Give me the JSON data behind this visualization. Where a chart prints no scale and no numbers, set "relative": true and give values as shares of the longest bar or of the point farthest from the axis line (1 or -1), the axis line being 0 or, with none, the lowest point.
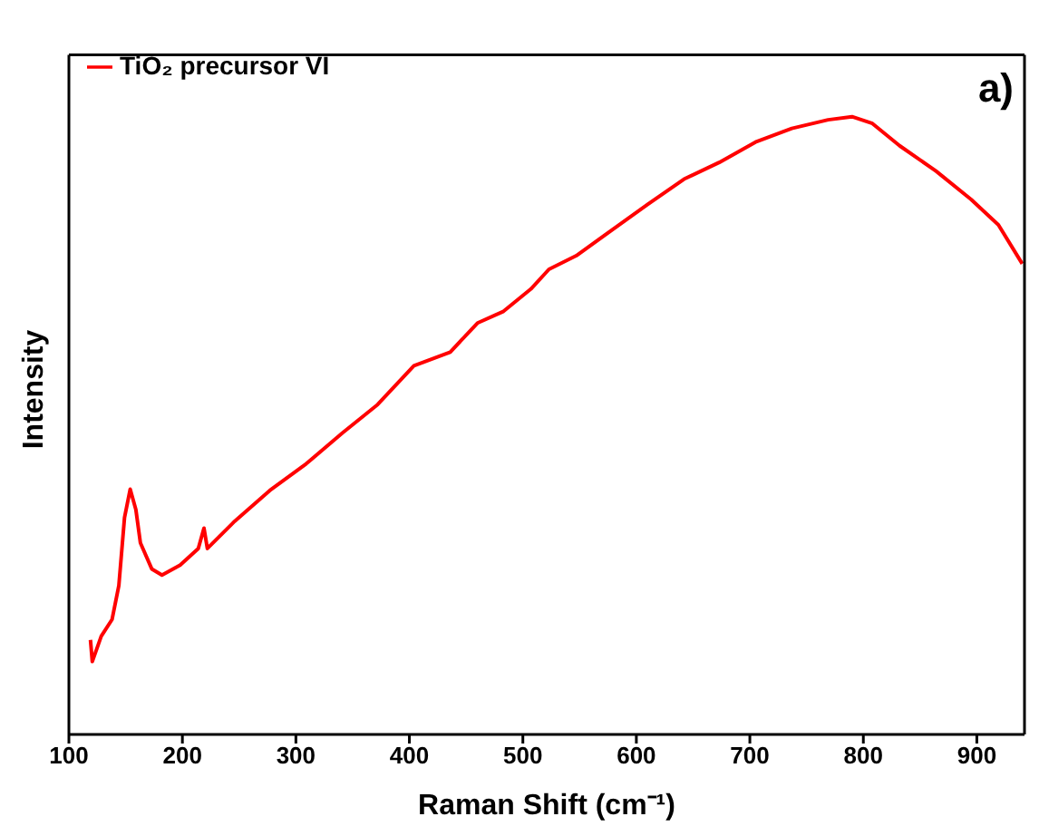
{
  "chart_data": {
    "type": "line",
    "xlabel": "Raman Shift (cm⁻¹)",
    "ylabel": "Intensity",
    "relative": true,
    "xlim": [
      100,
      942
    ],
    "xticks": [
      100,
      200,
      300,
      400,
      500,
      600,
      700,
      800,
      900
    ],
    "legend": "top left",
    "annotations": [
      "a)"
    ],
    "series": [
      {
        "name": "TiO₂ precursor VI",
        "color": "#ff0000",
        "x": [
          119,
          120.6,
          128.5,
          138,
          144,
          149,
          154,
          159,
          163,
          173,
          182,
          198,
          214,
          219,
          222,
          246,
          277,
          309,
          341,
          372,
          404,
          436,
          460,
          483,
          507,
          523,
          547,
          578,
          610,
          642,
          673,
          705,
          737,
          769,
          790,
          808,
          832,
          864,
          895,
          919,
          940
        ],
        "values": [
          0.153,
          0.118,
          0.159,
          0.186,
          0.241,
          0.351,
          0.397,
          0.364,
          0.31,
          0.268,
          0.258,
          0.274,
          0.301,
          0.334,
          0.301,
          0.345,
          0.395,
          0.438,
          0.488,
          0.534,
          0.597,
          0.619,
          0.666,
          0.685,
          0.721,
          0.753,
          0.775,
          0.816,
          0.858,
          0.899,
          0.926,
          0.959,
          0.981,
          0.995,
          1,
          0.989,
          0.953,
          0.912,
          0.866,
          0.825,
          0.762
        ]
      }
    ]
  }
}
